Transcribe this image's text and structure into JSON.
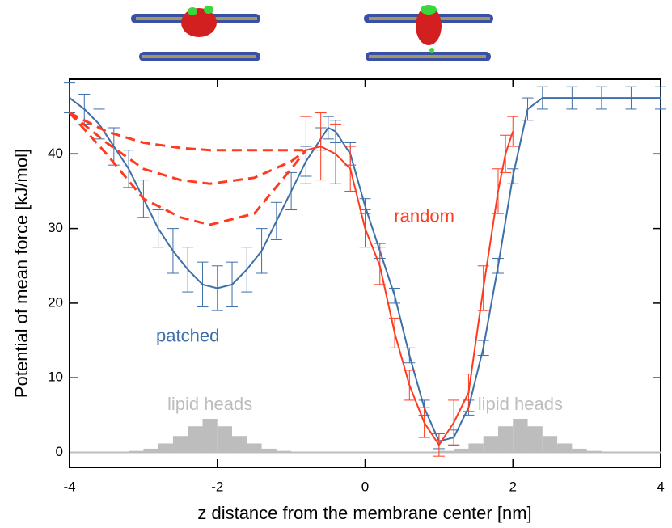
{
  "chart_data": {
    "type": "line",
    "xlabel": "z distance from the membrane center [nm]",
    "ylabel": "Potential of mean force [kJ/mol]",
    "xlim": [
      -4,
      4
    ],
    "ylim": [
      -2,
      50
    ],
    "xticks": [
      -4,
      -2,
      0,
      2,
      4
    ],
    "yticks": [
      0,
      10,
      20,
      30,
      40
    ],
    "series": [
      {
        "name": "patched",
        "color": "#3d6fa8",
        "x": [
          -4,
          -3.8,
          -3.6,
          -3.4,
          -3.2,
          -3.0,
          -2.8,
          -2.6,
          -2.4,
          -2.2,
          -2.0,
          -1.8,
          -1.6,
          -1.4,
          -1.2,
          -1.0,
          -0.8,
          -0.6,
          -0.5,
          -0.4,
          -0.2,
          0,
          0.2,
          0.4,
          0.6,
          0.8,
          1.0,
          1.2,
          1.4,
          1.6,
          1.8,
          2.0,
          2.2,
          2.4,
          2.8,
          3.2,
          3.6,
          4.0
        ],
        "values": [
          47.5,
          46,
          44,
          41,
          38,
          34,
          30,
          27,
          24.5,
          22.5,
          22,
          22.5,
          24.5,
          27,
          31,
          35,
          39,
          42,
          43.5,
          43,
          40,
          33,
          27,
          21,
          13,
          6,
          1.5,
          2,
          6,
          14,
          25,
          37,
          46,
          47.5,
          47.5,
          47.5,
          47.5,
          47.5
        ],
        "errors": [
          2,
          2,
          2,
          2.5,
          2.5,
          2.5,
          2.5,
          3,
          3,
          3,
          3,
          3,
          3,
          3,
          2.5,
          2.5,
          2,
          1.5,
          1.5,
          1.5,
          1.5,
          1,
          1,
          1,
          1,
          1,
          1,
          1,
          1,
          1,
          1,
          1,
          1.5,
          1.5,
          1.5,
          1.5,
          1.5,
          1.5
        ]
      },
      {
        "name": "random",
        "color": "#ff3b1f",
        "x": [
          -0.8,
          -0.6,
          -0.4,
          -0.2,
          0,
          0.2,
          0.4,
          0.6,
          0.8,
          1.0,
          1.2,
          1.4,
          1.6,
          1.8,
          1.9,
          2.0
        ],
        "values": [
          40.5,
          41,
          40,
          38,
          30,
          25,
          16,
          9,
          4,
          1,
          4,
          8,
          22,
          35,
          40,
          43
        ],
        "errors": [
          4.5,
          4.5,
          4,
          3,
          2.5,
          2.5,
          2,
          2,
          2,
          1.5,
          3,
          2.5,
          3,
          3,
          2.5,
          2
        ]
      },
      {
        "color": "#ff3b1f",
        "dashed": true,
        "x": [
          -4,
          -3.5,
          -3,
          -2.5,
          -2.1,
          -1.5,
          -1,
          -0.8
        ],
        "values": [
          45.5,
          43,
          41.5,
          40.8,
          40.5,
          40.5,
          40.5,
          40.5
        ]
      },
      {
        "color": "#ff3b1f",
        "dashed": true,
        "x": [
          -4,
          -3.5,
          -3,
          -2.5,
          -2.1,
          -1.5,
          -1,
          -0.8
        ],
        "values": [
          45.5,
          41.5,
          38,
          36.5,
          36,
          36.8,
          39,
          40.5
        ]
      },
      {
        "color": "#ff3b1f",
        "dashed": true,
        "x": [
          -4,
          -3.5,
          -3,
          -2.5,
          -2.1,
          -1.5,
          -1,
          -0.8
        ],
        "values": [
          45.5,
          40,
          34,
          31.5,
          30.5,
          32,
          38,
          40.5
        ]
      }
    ],
    "histograms": [
      {
        "name": "lipid heads",
        "color": "#bdbdbd",
        "bins": [
          -3.2,
          -3.0,
          -2.8,
          -2.6,
          -2.4,
          -2.2,
          -2.0,
          -1.8,
          -1.6,
          -1.4,
          -1.2,
          -1.0
        ],
        "counts": [
          0.2,
          0.5,
          1.2,
          2.2,
          3.5,
          4.5,
          3.5,
          2.2,
          1.2,
          0.5,
          0.2
        ]
      },
      {
        "name": "lipid heads",
        "color": "#bdbdbd",
        "bins": [
          1.0,
          1.2,
          1.4,
          1.6,
          1.8,
          2.0,
          2.2,
          2.4,
          2.6,
          2.8,
          3.0,
          3.2
        ],
        "counts": [
          0.2,
          0.5,
          1.2,
          2.2,
          3.5,
          4.5,
          3.5,
          2.2,
          1.2,
          0.5,
          0.2
        ]
      }
    ]
  }
}
